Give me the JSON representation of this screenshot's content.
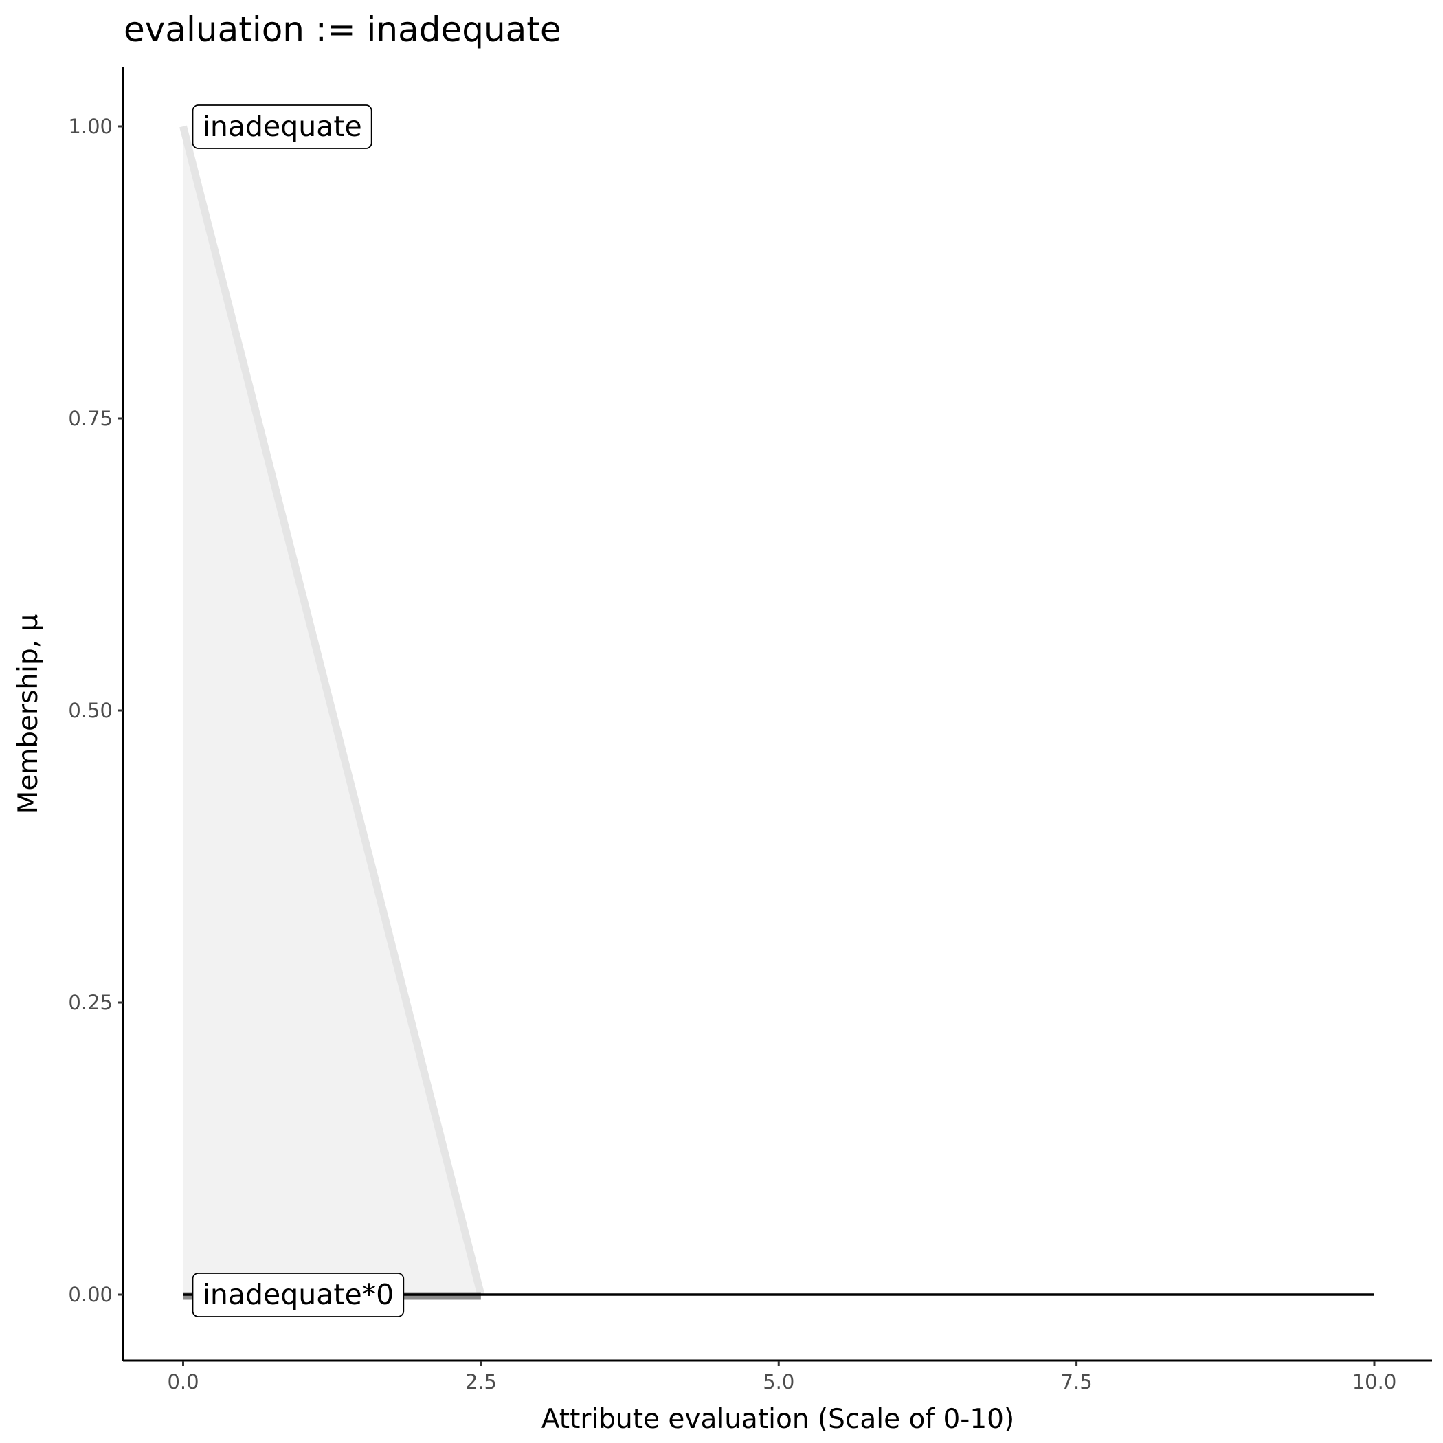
{
  "chart_data": {
    "type": "area",
    "title": "evaluation := inadequate",
    "xlabel": "Attribute evaluation (Scale of 0-10)",
    "ylabel": "Membership, μ",
    "xlim": [
      -0.5,
      10.5
    ],
    "ylim": [
      -0.05,
      1.05
    ],
    "x_ticks": [
      0,
      2.5,
      5,
      7.5,
      10
    ],
    "x_tick_labels": [
      "0.0",
      "2.5",
      "5.0",
      "7.5",
      "10.0"
    ],
    "y_ticks": [
      0,
      0.25,
      0.5,
      0.75,
      1
    ],
    "y_tick_labels": [
      "0.00",
      "0.25",
      "0.50",
      "0.75",
      "1.00"
    ],
    "grid": false,
    "series": [
      {
        "x": [
          0,
          2.5
        ],
        "y": [
          1,
          0
        ],
        "fill": "#f2f2f2",
        "color": "#e5e5e5"
      },
      {
        "x": [
          0,
          2.5
        ],
        "y": [
          0,
          0
        ],
        "color": "#8c8c8c"
      },
      {
        "x": [
          0,
          10
        ],
        "y": [
          0,
          0
        ],
        "color": "#000000"
      }
    ],
    "annotations": [
      {
        "text": "inadequate",
        "x": 0,
        "y": 1
      },
      {
        "text": "inadequate*0",
        "x": 0,
        "y": 0
      }
    ]
  }
}
